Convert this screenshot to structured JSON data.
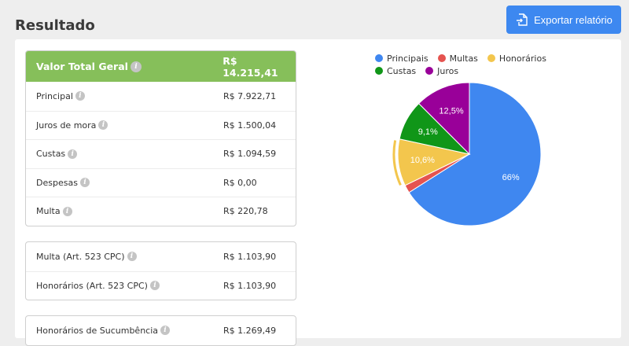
{
  "page": {
    "title": "Resultado",
    "export_label": "Exportar relatório"
  },
  "summary": {
    "header": {
      "label": "Valor Total Geral",
      "value": "R$ 14.215,41"
    },
    "rows": [
      {
        "label": "Principal",
        "value": "R$ 7.922,71"
      },
      {
        "label": "Juros de mora",
        "value": "R$ 1.500,04"
      },
      {
        "label": "Custas",
        "value": "R$ 1.094,59"
      },
      {
        "label": "Despesas",
        "value": "R$ 0,00"
      },
      {
        "label": "Multa",
        "value": "R$ 220,78"
      }
    ]
  },
  "art523": {
    "rows": [
      {
        "label": "Multa (Art. 523 CPC)",
        "value": "R$ 1.103,90"
      },
      {
        "label": "Honorários (Art. 523 CPC)",
        "value": "R$ 1.103,90"
      }
    ]
  },
  "sucumbencia": {
    "rows": [
      {
        "label": "Honorários de Sucumbência",
        "value": "R$ 1.269,49"
      }
    ]
  },
  "chart_data": {
    "type": "pie",
    "legend_position": "top",
    "categories": [
      "Principais",
      "Multas",
      "Honorários",
      "Custas",
      "Juros"
    ],
    "values": [
      66,
      1.8,
      10.6,
      9.1,
      12.5
    ],
    "labels": [
      "66%",
      "",
      "10,6%",
      "9,1%",
      "12,5%"
    ],
    "colors": [
      "#3f87f0",
      "#e5534f",
      "#f3c64d",
      "#109618",
      "#990099"
    ],
    "highlighted": "Honorários"
  }
}
